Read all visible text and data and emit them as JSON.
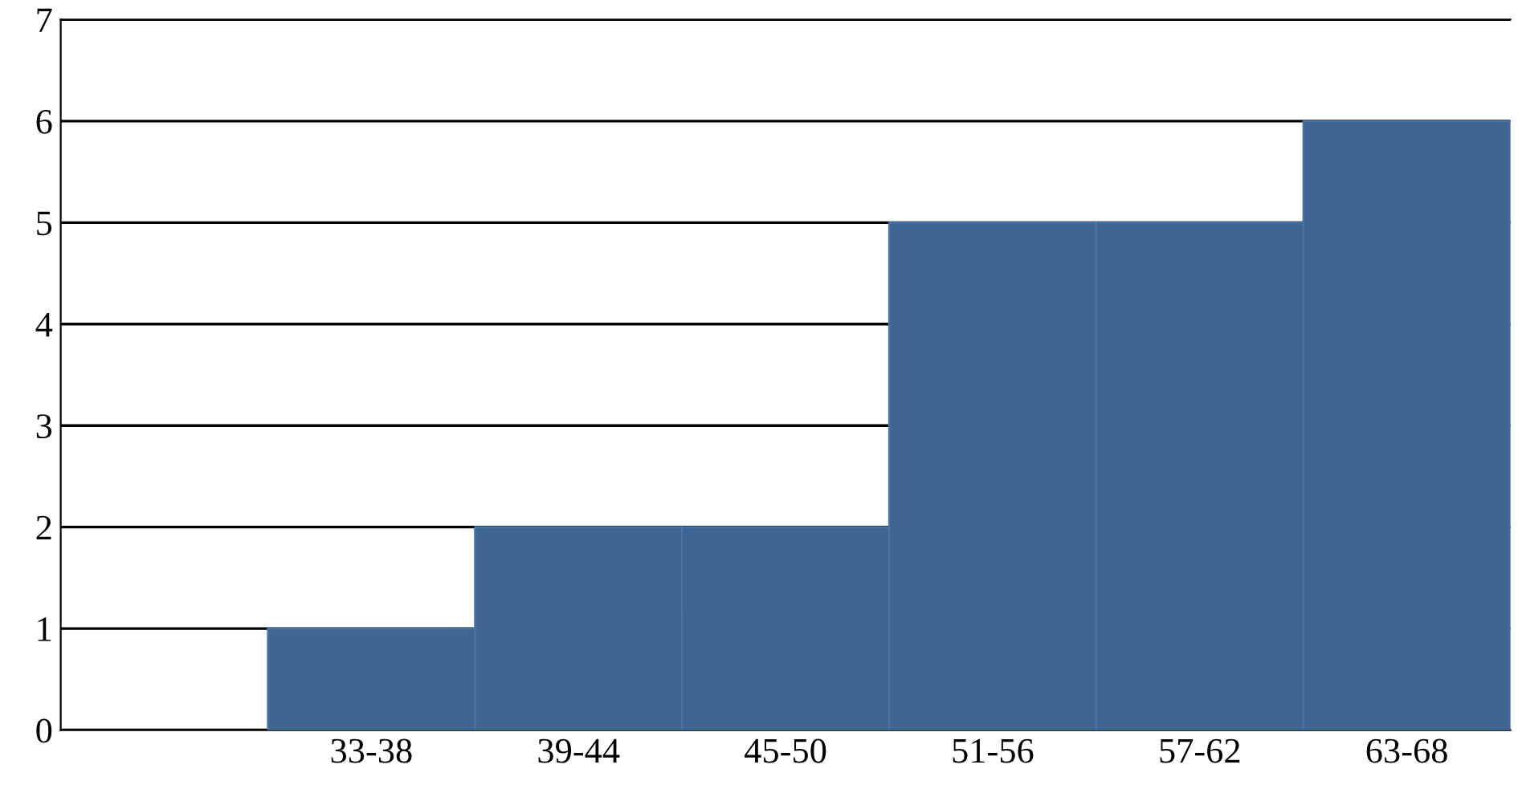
{
  "chart_data": {
    "type": "bar",
    "categories": [
      null,
      "33-38",
      "39-44",
      "45-50",
      "51-56",
      "57-62",
      "63-68"
    ],
    "values": [
      null,
      1,
      2,
      2,
      5,
      5,
      6
    ],
    "color": "#3f6593",
    "ylim": [
      0,
      7
    ],
    "yticks": [
      0,
      1,
      2,
      3,
      4,
      5,
      6,
      7
    ],
    "grid": "y"
  }
}
